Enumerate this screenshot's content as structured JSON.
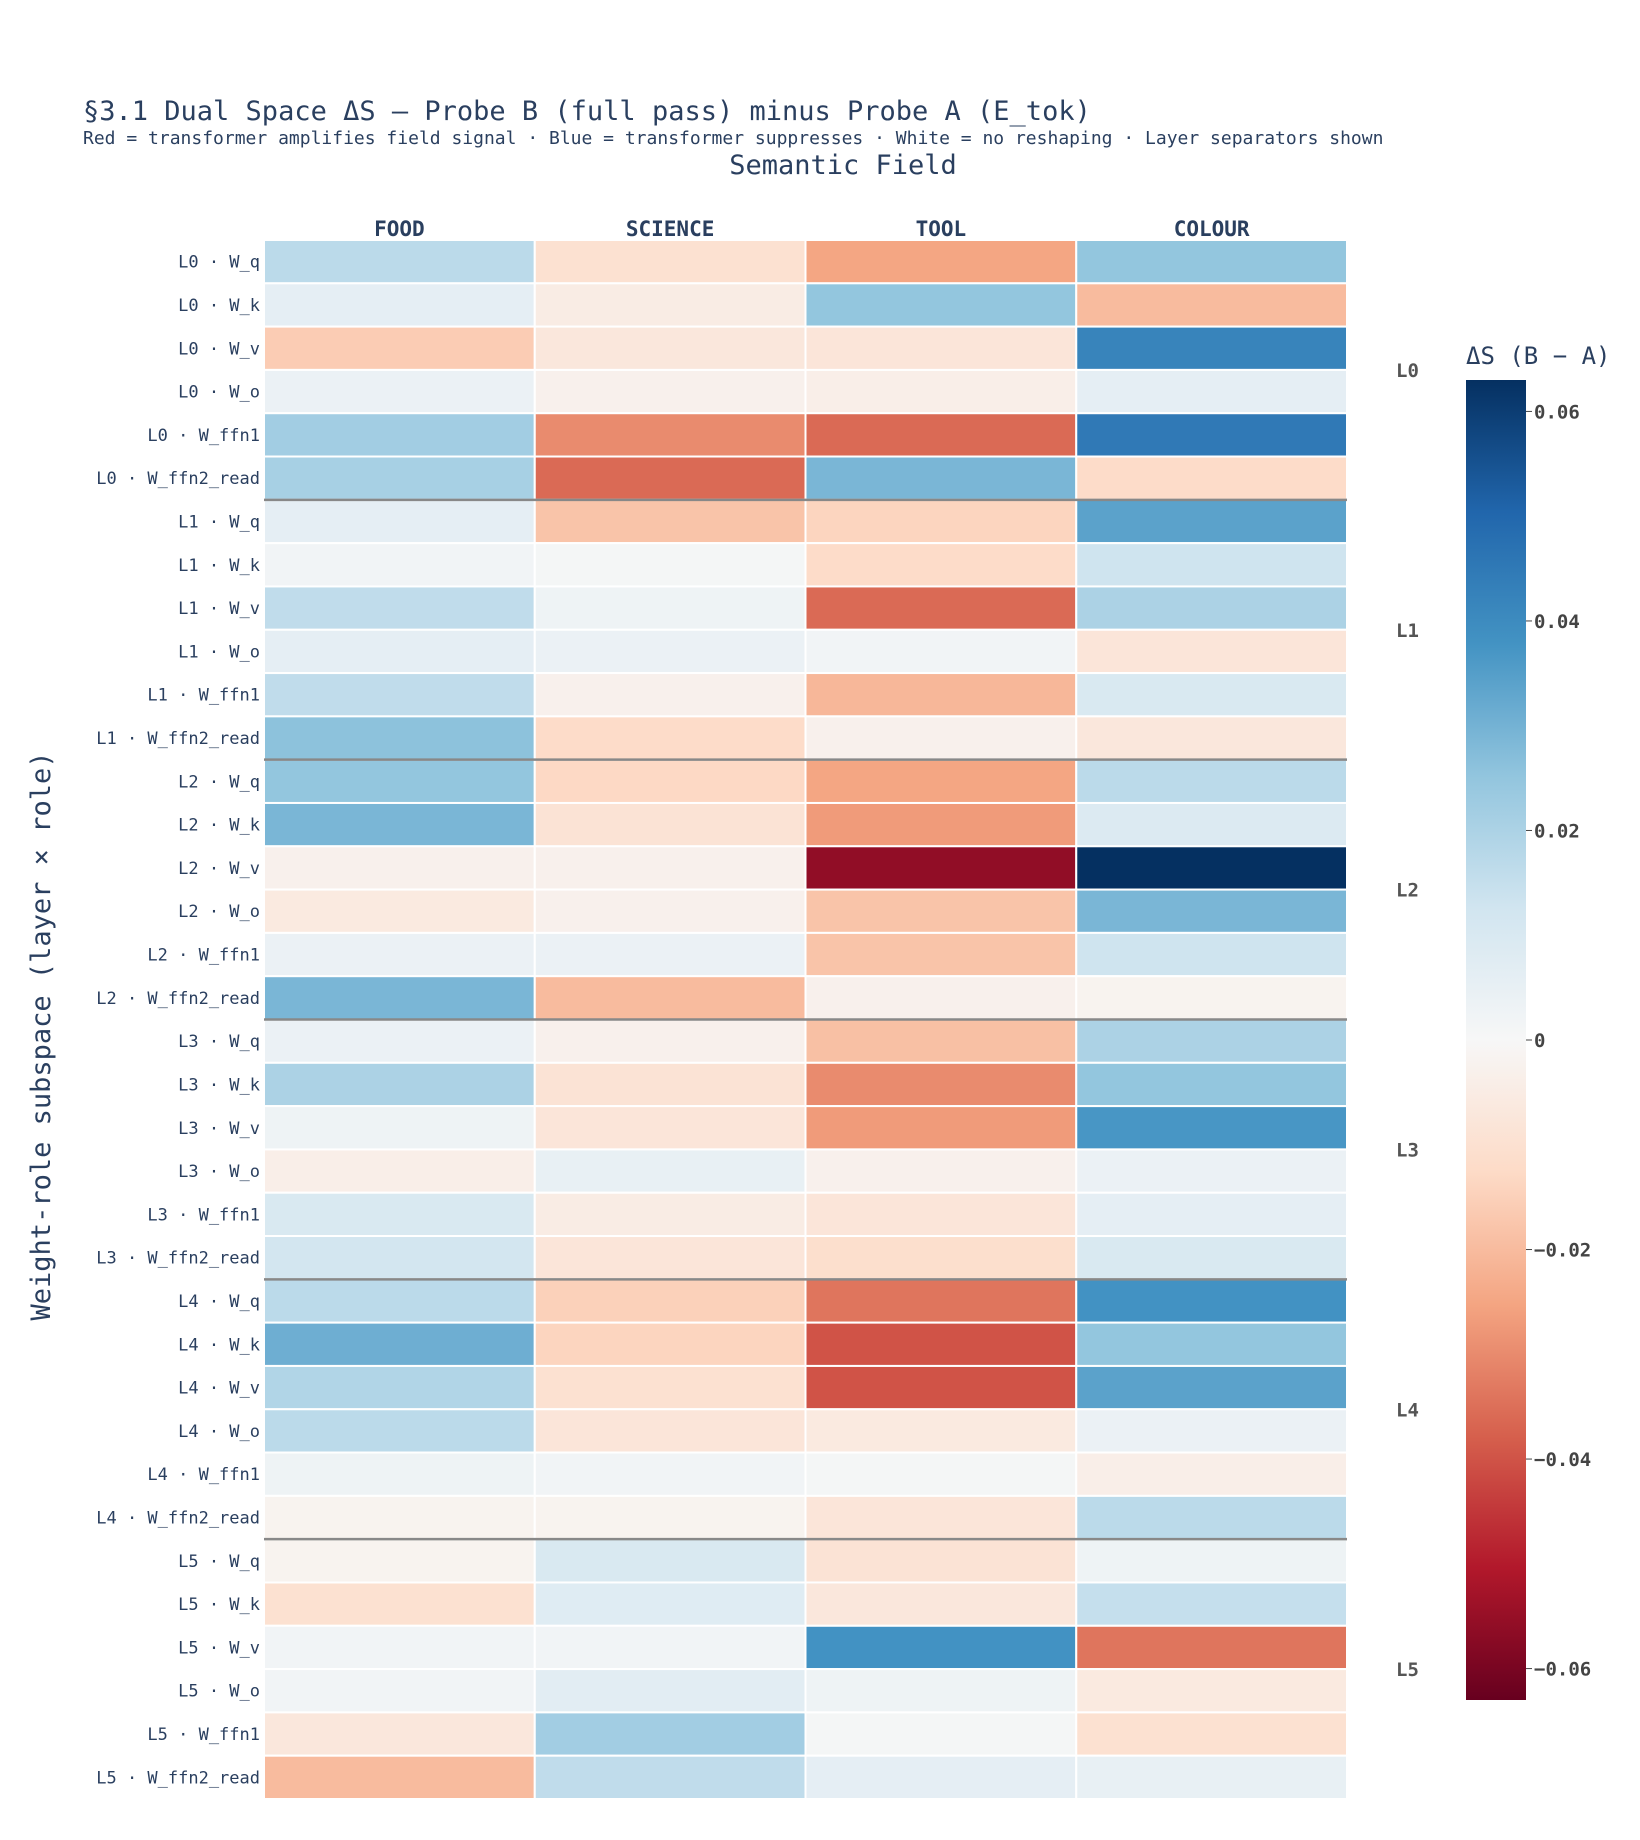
{
  "header": {
    "title": "§3.1 Dual Space ΔS — Probe B (full pass) minus Probe A (E_tok)",
    "subtitle": "Red = transformer amplifies field signal · Blue = transformer suppresses · White = no reshaping · Layer separators shown"
  },
  "chart_data": {
    "type": "heatmap",
    "xlabel": "Semantic Field",
    "ylabel": "Weight-role subspace (layer × role)",
    "colorbar_title": "ΔS (B − A)",
    "colorscale": "RdBu",
    "zlim": [
      -0.063,
      0.063
    ],
    "colorbar_ticks": [
      0.06,
      0.04,
      0.02,
      0,
      -0.02,
      -0.04,
      -0.06
    ],
    "colorbar_tick_labels": [
      "0.06",
      "0.04",
      "0.02",
      "0",
      "−0.02",
      "−0.04",
      "−0.06"
    ],
    "columns": [
      "FOOD",
      "SCIENCE",
      "TOOL",
      "COLOUR"
    ],
    "rows": [
      "L0 · W_q",
      "L0 · W_k",
      "L0 · W_v",
      "L0 · W_o",
      "L0 · W_ffn1",
      "L0 · W_ffn2_read",
      "L1 · W_q",
      "L1 · W_k",
      "L1 · W_v",
      "L1 · W_o",
      "L1 · W_ffn1",
      "L1 · W_ffn2_read",
      "L2 · W_q",
      "L2 · W_k",
      "L2 · W_v",
      "L2 · W_o",
      "L2 · W_ffn1",
      "L2 · W_ffn2_read",
      "L3 · W_q",
      "L3 · W_k",
      "L3 · W_v",
      "L3 · W_o",
      "L3 · W_ffn1",
      "L3 · W_ffn2_read",
      "L4 · W_q",
      "L4 · W_k",
      "L4 · W_v",
      "L4 · W_o",
      "L4 · W_ffn1",
      "L4 · W_ffn2_read",
      "L5 · W_q",
      "L5 · W_k",
      "L5 · W_v",
      "L5 · W_o",
      "L5 · W_ffn1",
      "L5 · W_ffn2_read"
    ],
    "layer_labels": [
      "L0",
      "L1",
      "L2",
      "L3",
      "L4",
      "L5"
    ],
    "z": [
      [
        0.017,
        -0.01,
        -0.025,
        0.025
      ],
      [
        0.006,
        -0.005,
        0.025,
        -0.02
      ],
      [
        -0.016,
        -0.007,
        -0.008,
        0.042
      ],
      [
        0.004,
        -0.003,
        -0.004,
        0.006
      ],
      [
        0.022,
        -0.03,
        -0.036,
        0.045
      ],
      [
        0.021,
        -0.036,
        0.029,
        -0.012
      ],
      [
        0.006,
        -0.018,
        -0.014,
        0.034
      ],
      [
        0.002,
        0.001,
        -0.012,
        0.013
      ],
      [
        0.016,
        0.003,
        -0.036,
        0.02
      ],
      [
        0.006,
        0.004,
        0.002,
        -0.008
      ],
      [
        0.016,
        -0.003,
        -0.021,
        0.01
      ],
      [
        0.026,
        -0.012,
        -0.003,
        -0.007
      ],
      [
        0.025,
        -0.013,
        -0.025,
        0.017
      ],
      [
        0.029,
        -0.009,
        -0.027,
        0.009
      ],
      [
        -0.003,
        -0.003,
        -0.056,
        0.063
      ],
      [
        -0.006,
        -0.003,
        -0.018,
        0.029
      ],
      [
        0.004,
        0.004,
        -0.018,
        0.013
      ],
      [
        0.029,
        -0.02,
        -0.003,
        -0.002
      ],
      [
        0.004,
        -0.003,
        -0.019,
        0.02
      ],
      [
        0.02,
        -0.009,
        -0.03,
        0.025
      ],
      [
        0.003,
        -0.008,
        -0.027,
        0.037
      ],
      [
        -0.004,
        0.005,
        -0.003,
        0.004
      ],
      [
        0.01,
        -0.005,
        -0.008,
        0.006
      ],
      [
        0.012,
        -0.008,
        -0.011,
        0.01
      ],
      [
        0.017,
        -0.015,
        -0.034,
        0.038
      ],
      [
        0.031,
        -0.014,
        -0.04,
        0.025
      ],
      [
        0.019,
        -0.01,
        -0.04,
        0.034
      ],
      [
        0.017,
        -0.008,
        -0.006,
        0.004
      ],
      [
        0.003,
        0.002,
        0.001,
        -0.004
      ],
      [
        -0.002,
        -0.002,
        -0.008,
        0.017
      ],
      [
        -0.002,
        0.01,
        -0.009,
        0.003
      ],
      [
        -0.01,
        0.008,
        -0.007,
        0.015
      ],
      [
        0.002,
        0.002,
        0.038,
        -0.034
      ],
      [
        0.002,
        0.007,
        0.003,
        -0.006
      ],
      [
        -0.007,
        0.022,
        0.001,
        -0.01
      ],
      [
        -0.02,
        0.016,
        0.006,
        0.005
      ]
    ]
  }
}
